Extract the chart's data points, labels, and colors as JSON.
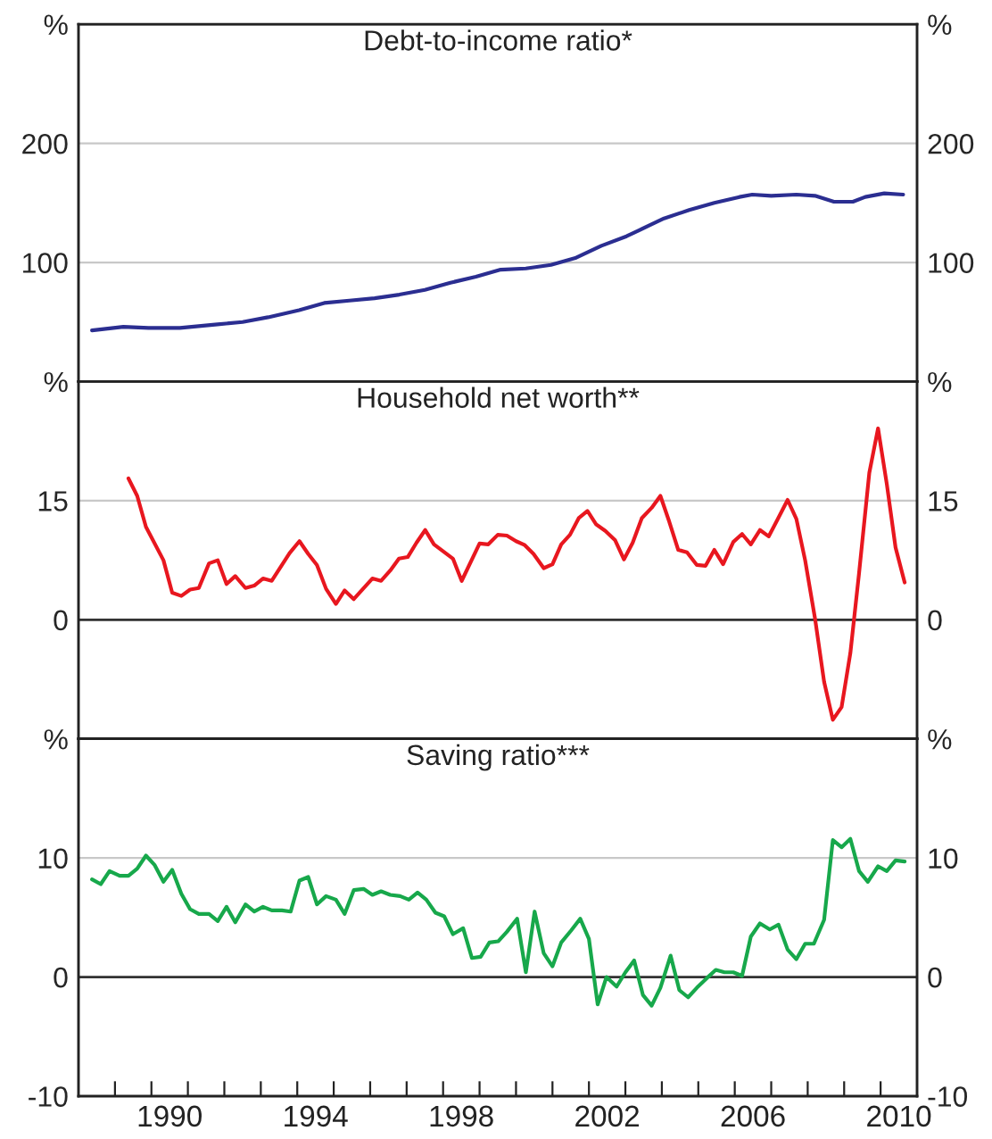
{
  "chart_data": [
    {
      "type": "line",
      "title": "Debt-to-income ratio*",
      "xlim": [
        1988,
        2011
      ],
      "ylim": [
        0,
        300
      ],
      "yticks": [
        {
          "value": 0,
          "label": null
        },
        100,
        200,
        {
          "value": 300,
          "label": "%"
        }
      ],
      "y2lim": [
        0,
        300
      ],
      "y2ticks": [
        {
          "value": 0,
          "label": null
        },
        100,
        200,
        {
          "value": 300,
          "label": "%"
        }
      ],
      "grid": "y",
      "tick_labels": "y",
      "line_style": "solid",
      "marker": "none",
      "series": [
        {
          "color": "#2b2e91",
          "x": [
            1988.37,
            1989.23,
            1989.92,
            1990.78,
            1991.81,
            1992.5,
            1993.2,
            1994.05,
            1994.74,
            1995.43,
            1996.12,
            1996.8,
            1997.5,
            1998.2,
            1998.9,
            1999.58,
            2000.27,
            2000.96,
            2001.65,
            2002.34,
            2003.03,
            2003.37,
            2004.06,
            2004.75,
            2005.44,
            2006.13,
            2006.48,
            2007.0,
            2007.69,
            2008.2,
            2008.72,
            2009.24,
            2009.58,
            2010.1,
            2010.62
          ],
          "values": [
            43,
            46,
            45,
            45,
            48,
            50,
            54,
            60,
            66,
            68,
            70,
            73,
            77,
            83,
            88,
            94,
            95,
            98,
            104,
            114,
            122,
            127,
            137,
            144,
            150,
            155,
            157,
            156,
            157,
            156,
            151,
            151,
            155,
            158,
            157
          ]
        }
      ]
    },
    {
      "type": "line",
      "title": "Household net worth**",
      "xlim": [
        1988,
        2011
      ],
      "ylim": [
        -15,
        30
      ],
      "yticks": [
        {
          "value": -15,
          "label": null
        },
        0,
        15,
        {
          "value": 30,
          "label": "%"
        }
      ],
      "y2lim": [
        -15,
        30
      ],
      "y2ticks": [
        {
          "value": -15,
          "label": null
        },
        0,
        15,
        {
          "value": 30,
          "label": "%"
        }
      ],
      "grid": "y",
      "tick_labels": "y",
      "line_style": "solid",
      "marker": "none",
      "ref_lines": [
        {
          "axis": "y",
          "value": 0,
          "color": "#333333"
        }
      ],
      "series": [
        {
          "color": "#e8171f",
          "x": [
            1989.37,
            1989.61,
            1989.85,
            1990.33,
            1990.57,
            1990.82,
            1991.06,
            1991.3,
            1991.58,
            1991.82,
            1992.06,
            1992.3,
            1992.58,
            1992.82,
            1993.06,
            1993.3,
            1993.79,
            1994.06,
            1994.3,
            1994.54,
            1994.79,
            1995.06,
            1995.3,
            1995.55,
            1996.06,
            1996.3,
            1996.55,
            1996.79,
            1997.03,
            1997.27,
            1997.51,
            1997.75,
            1998.27,
            1998.51,
            1999.0,
            1999.24,
            1999.5,
            1999.75,
            2000.0,
            2000.24,
            2000.48,
            2000.76,
            2001.0,
            2001.24,
            2001.48,
            2001.72,
            2001.96,
            2002.2,
            2002.45,
            2002.72,
            2002.96,
            2003.2,
            2003.45,
            2003.72,
            2003.96,
            2004.2,
            2004.45,
            2004.69,
            2004.96,
            2005.2,
            2005.44,
            2005.68,
            2005.96,
            2006.2,
            2006.44,
            2006.69,
            2006.93,
            2007.17,
            2007.45,
            2007.69,
            2007.93,
            2008.2,
            2008.45,
            2008.69,
            2008.93,
            2009.17,
            2009.41,
            2009.69,
            2009.93,
            2010.17,
            2010.41,
            2010.66
          ],
          "values": [
            17.8,
            15.6,
            11.7,
            7.5,
            3.4,
            3.0,
            3.8,
            4.0,
            7.1,
            7.5,
            4.5,
            5.5,
            4.0,
            4.3,
            5.2,
            4.9,
            8.4,
            9.9,
            8.3,
            6.9,
            3.9,
            2.0,
            3.7,
            2.6,
            5.2,
            4.9,
            6.2,
            7.7,
            7.9,
            9.7,
            11.3,
            9.5,
            7.7,
            4.9,
            9.6,
            9.5,
            10.7,
            10.6,
            9.9,
            9.4,
            8.3,
            6.5,
            7.0,
            9.5,
            10.7,
            12.8,
            13.7,
            12.0,
            11.2,
            10.0,
            7.6,
            9.7,
            12.8,
            14.1,
            15.6,
            12.4,
            8.8,
            8.5,
            6.9,
            6.8,
            8.8,
            7.0,
            9.8,
            10.8,
            9.5,
            11.3,
            10.5,
            12.6,
            15.1,
            12.7,
            7.5,
            0.2,
            -7.8,
            -12.6,
            -11.0,
            -4.2,
            5.9,
            18.5,
            24.1,
            17.1,
            9.1,
            4.7
          ]
        }
      ]
    },
    {
      "type": "line",
      "title": "Saving ratio***",
      "xlim": [
        1988,
        2011
      ],
      "ylim": [
        -10,
        20
      ],
      "yticks": [
        -10,
        0,
        10,
        {
          "value": 20,
          "label": "%"
        }
      ],
      "y2lim": [
        -10,
        20
      ],
      "y2ticks": [
        -10,
        0,
        10,
        {
          "value": 20,
          "label": "%"
        }
      ],
      "grid": "y",
      "line_style": "solid",
      "marker": "none",
      "xticks": [
        {
          "value": 1989,
          "label": null
        },
        {
          "value": 1990,
          "label": null
        },
        {
          "value": 1990.5,
          "label": "1990"
        },
        {
          "value": 1991,
          "label": null
        },
        {
          "value": 1992,
          "label": null
        },
        {
          "value": 1993,
          "label": null
        },
        {
          "value": 1994,
          "label": null
        },
        {
          "value": 1994.5,
          "label": "1994"
        },
        {
          "value": 1995,
          "label": null
        },
        {
          "value": 1996,
          "label": null
        },
        {
          "value": 1997,
          "label": null
        },
        {
          "value": 1998,
          "label": null
        },
        {
          "value": 1998.5,
          "label": "1998"
        },
        {
          "value": 1999,
          "label": null
        },
        {
          "value": 2000,
          "label": null
        },
        {
          "value": 2001,
          "label": null
        },
        {
          "value": 2002,
          "label": null
        },
        {
          "value": 2002.5,
          "label": "2002"
        },
        {
          "value": 2003,
          "label": null
        },
        {
          "value": 2004,
          "label": null
        },
        {
          "value": 2005,
          "label": null
        },
        {
          "value": 2006,
          "label": null
        },
        {
          "value": 2006.5,
          "label": "2006"
        },
        {
          "value": 2007,
          "label": null
        },
        {
          "value": 2008,
          "label": null
        },
        {
          "value": 2009,
          "label": null
        },
        {
          "value": 2010,
          "label": null
        },
        {
          "value": 2010.5,
          "label": "2010"
        }
      ],
      "ref_lines": [
        {
          "axis": "y",
          "value": 0,
          "color": "#333333"
        }
      ],
      "series": [
        {
          "color": "#17a84b",
          "x": [
            1988.37,
            1988.61,
            1988.85,
            1989.13,
            1989.37,
            1989.61,
            1989.85,
            1990.09,
            1990.33,
            1990.57,
            1990.82,
            1991.06,
            1991.3,
            1991.58,
            1991.82,
            1992.06,
            1992.3,
            1992.58,
            1992.82,
            1993.06,
            1993.3,
            1993.58,
            1993.82,
            1994.06,
            1994.3,
            1994.54,
            1994.79,
            1995.06,
            1995.3,
            1995.55,
            1995.82,
            1996.06,
            1996.3,
            1996.55,
            1996.82,
            1997.06,
            1997.3,
            1997.54,
            1997.79,
            1998.03,
            1998.27,
            1998.55,
            1998.79,
            1999.03,
            1999.27,
            1999.51,
            1999.75,
            2000.03,
            2000.27,
            2000.51,
            2000.76,
            2001.0,
            2001.24,
            2001.51,
            2001.76,
            2002.0,
            2002.24,
            2002.48,
            2002.76,
            2003.0,
            2003.24,
            2003.48,
            2003.72,
            2003.96,
            2004.24,
            2004.48,
            2004.72,
            2004.96,
            2005.23,
            2005.48,
            2005.72,
            2005.96,
            2006.2,
            2006.44,
            2006.69,
            2006.96,
            2007.2,
            2007.45,
            2007.69,
            2007.93,
            2008.17,
            2008.45,
            2008.69,
            2008.93,
            2009.17,
            2009.41,
            2009.65,
            2009.93,
            2010.17,
            2010.41,
            2010.66
          ],
          "values": [
            8.2,
            7.8,
            8.9,
            8.5,
            8.5,
            9.1,
            10.2,
            9.4,
            8.0,
            9.0,
            7.0,
            5.7,
            5.3,
            5.3,
            4.7,
            5.9,
            4.6,
            6.1,
            5.5,
            5.9,
            5.6,
            5.6,
            5.5,
            8.1,
            8.4,
            6.1,
            6.8,
            6.5,
            5.3,
            7.3,
            7.4,
            6.9,
            7.2,
            6.9,
            6.8,
            6.5,
            7.1,
            6.5,
            5.4,
            5.1,
            3.6,
            4.1,
            1.6,
            1.7,
            2.9,
            3.0,
            3.8,
            4.9,
            0.4,
            5.5,
            2.0,
            0.9,
            2.9,
            3.9,
            4.9,
            3.2,
            -2.3,
            0.0,
            -0.8,
            0.4,
            1.4,
            -1.5,
            -2.4,
            -0.9,
            1.8,
            -1.1,
            -1.7,
            -0.9,
            -0.1,
            0.6,
            0.4,
            0.4,
            0.1,
            3.4,
            4.5,
            4.0,
            4.4,
            2.3,
            1.5,
            2.8,
            2.8,
            4.8,
            11.5,
            10.9,
            11.6,
            8.9,
            8.0,
            9.3,
            8.9,
            9.8,
            9.7
          ]
        }
      ]
    }
  ]
}
